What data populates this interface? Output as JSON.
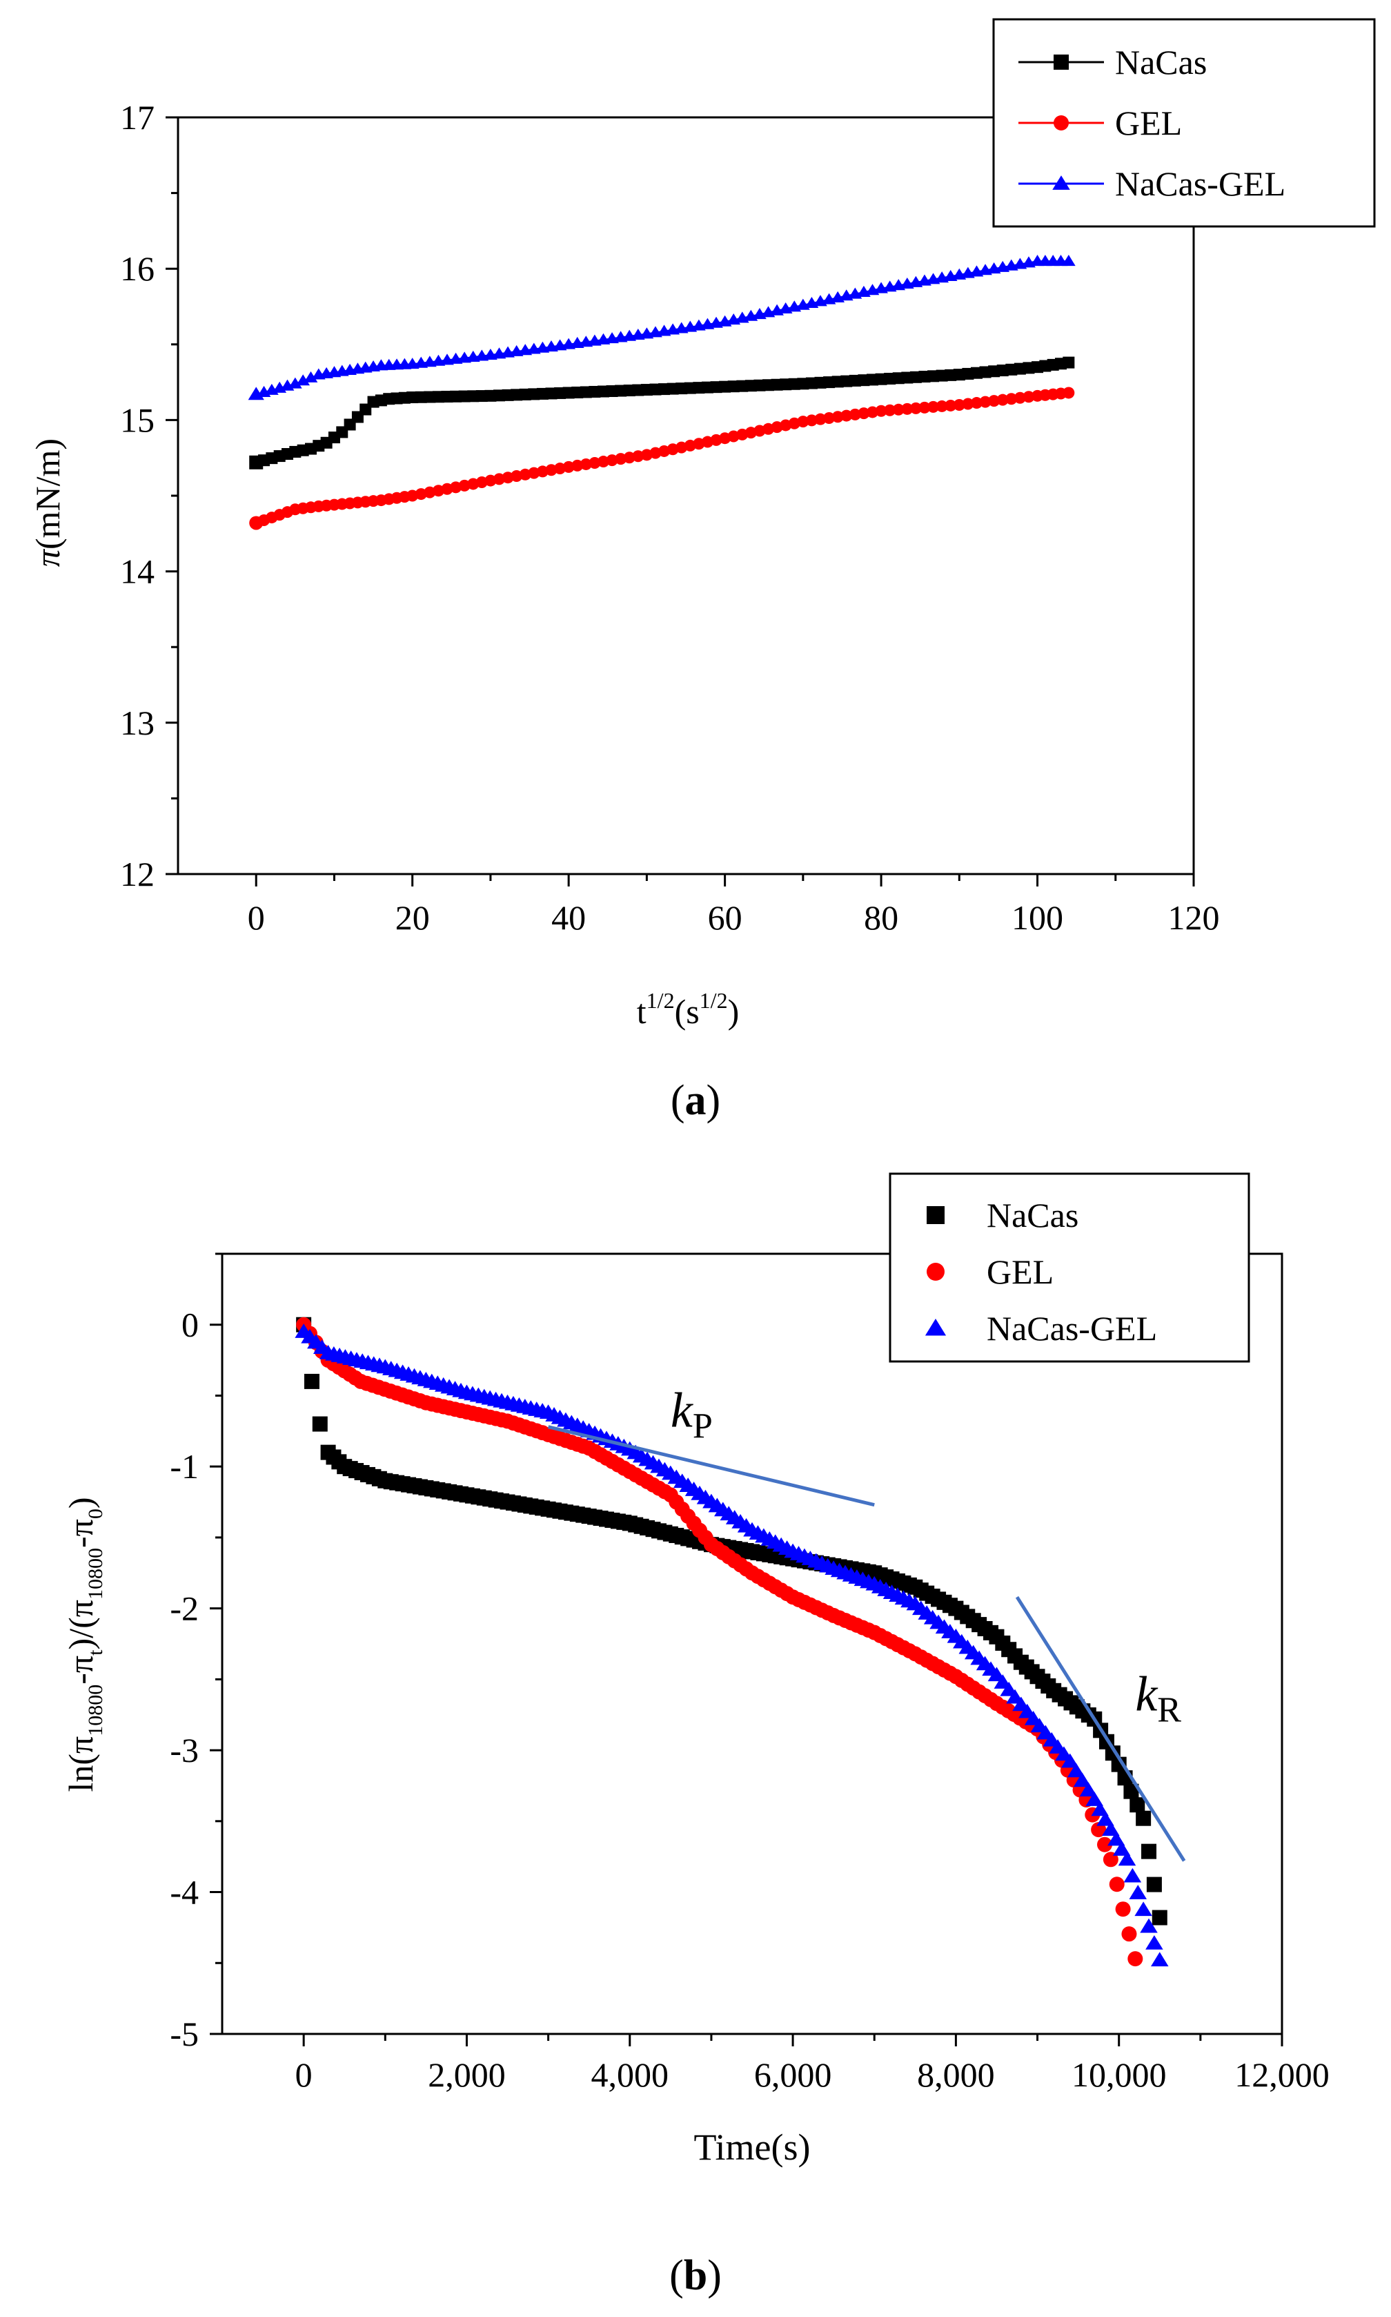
{
  "chart_data": [
    {
      "type": "line",
      "panel": "a",
      "caption": "(a)",
      "caption_letter": "a",
      "title": "",
      "xlabel_base": "t",
      "xlabel_sup": "1/2",
      "xlabel_mid": "(s",
      "xlabel_sup2": "1/2",
      "xlabel_end": ")",
      "ylabel_pi": "π",
      "ylabel_rest": "(mN/m)",
      "xlim": [
        -10,
        120
      ],
      "ylim": [
        12,
        17
      ],
      "xticks": [
        0,
        20,
        40,
        60,
        80,
        100,
        120
      ],
      "yticks": [
        12,
        13,
        14,
        15,
        16,
        17
      ],
      "xtick_labels": [
        "0",
        "20",
        "40",
        "60",
        "80",
        "100",
        "120"
      ],
      "ytick_labels": [
        "12",
        "13",
        "14",
        "15",
        "16",
        "17"
      ],
      "legend": [
        "NaCas",
        "GEL",
        "NaCas-GEL"
      ],
      "legend_position": "top-right",
      "series": [
        {
          "name": "NaCas",
          "color": "#000000",
          "marker": "square",
          "points": [
            [
              0,
              14.72
            ],
            [
              5,
              14.79
            ],
            [
              7,
              14.81
            ],
            [
              9,
              14.85
            ],
            [
              11,
              14.92
            ],
            [
              13,
              15.02
            ],
            [
              15,
              15.12
            ],
            [
              17,
              15.14
            ],
            [
              20,
              15.15
            ],
            [
              30,
              15.16
            ],
            [
              40,
              15.18
            ],
            [
              50,
              15.2
            ],
            [
              60,
              15.22
            ],
            [
              70,
              15.24
            ],
            [
              80,
              15.27
            ],
            [
              90,
              15.3
            ],
            [
              100,
              15.35
            ],
            [
              104,
              15.38
            ]
          ]
        },
        {
          "name": "GEL",
          "color": "#ff0000",
          "marker": "circle",
          "points": [
            [
              0,
              14.32
            ],
            [
              5,
              14.41
            ],
            [
              8,
              14.43
            ],
            [
              12,
              14.45
            ],
            [
              16,
              14.47
            ],
            [
              20,
              14.5
            ],
            [
              30,
              14.6
            ],
            [
              40,
              14.69
            ],
            [
              50,
              14.77
            ],
            [
              60,
              14.88
            ],
            [
              70,
              14.99
            ],
            [
              80,
              15.06
            ],
            [
              90,
              15.1
            ],
            [
              100,
              15.16
            ],
            [
              104,
              15.18
            ]
          ]
        },
        {
          "name": "NaCas-GEL",
          "color": "#0000ff",
          "marker": "triangle",
          "points": [
            [
              0,
              15.17
            ],
            [
              5,
              15.24
            ],
            [
              8,
              15.3
            ],
            [
              12,
              15.33
            ],
            [
              16,
              15.36
            ],
            [
              20,
              15.37
            ],
            [
              30,
              15.43
            ],
            [
              40,
              15.5
            ],
            [
              50,
              15.57
            ],
            [
              60,
              15.65
            ],
            [
              70,
              15.76
            ],
            [
              80,
              15.87
            ],
            [
              90,
              15.96
            ],
            [
              100,
              16.05
            ],
            [
              104,
              16.05
            ]
          ]
        }
      ]
    },
    {
      "type": "scatter",
      "panel": "b",
      "caption": "(b)",
      "caption_letter": "b",
      "title": "",
      "xlabel": "Time(s)",
      "ylabel_a": "ln(π",
      "ylabel_b": "10800",
      "ylabel_c": "-π",
      "ylabel_d": "t",
      "ylabel_e": ")/(π",
      "ylabel_f": "10800",
      "ylabel_g": "-π",
      "ylabel_h": "0",
      "ylabel_i": ")",
      "xlim": [
        -1000,
        12000
      ],
      "ylim": [
        -5,
        0.5
      ],
      "xticks": [
        0,
        2000,
        4000,
        6000,
        8000,
        10000,
        12000
      ],
      "yticks": [
        -5,
        -4,
        -3,
        -2,
        -1,
        0
      ],
      "xtick_labels": [
        "0",
        "2,000",
        "4,000",
        "6,000",
        "8,000",
        "10,000",
        "12,000"
      ],
      "ytick_labels": [
        "-5",
        "-4",
        "-3",
        "-2",
        "-1",
        "0"
      ],
      "legend": [
        "NaCas",
        "GEL",
        "NaCas-GEL"
      ],
      "legend_position": "top-right",
      "annotations": [
        {
          "label": "k",
          "sub": "P",
          "x": 4500,
          "y": -0.72
        },
        {
          "label": "k",
          "sub": "R",
          "x": 10200,
          "y": -2.72
        }
      ],
      "fit_lines": [
        {
          "name": "kP",
          "color": "#4472c4",
          "x1": 3000,
          "y1": -0.72,
          "x2": 7000,
          "y2": -1.27
        },
        {
          "name": "kR",
          "color": "#4472c4",
          "x1": 8750,
          "y1": -1.92,
          "x2": 10800,
          "y2": -3.78
        }
      ],
      "series": [
        {
          "name": "NaCas",
          "color": "#000000",
          "marker": "square",
          "points": [
            [
              0,
              0
            ],
            [
              100,
              -0.4
            ],
            [
              200,
              -0.7
            ],
            [
              300,
              -0.9
            ],
            [
              500,
              -1.0
            ],
            [
              1000,
              -1.1
            ],
            [
              1500,
              -1.15
            ],
            [
              2000,
              -1.2
            ],
            [
              3000,
              -1.3
            ],
            [
              4000,
              -1.4
            ],
            [
              5000,
              -1.55
            ],
            [
              6000,
              -1.65
            ],
            [
              7000,
              -1.75
            ],
            [
              7500,
              -1.85
            ],
            [
              8000,
              -2.0
            ],
            [
              8500,
              -2.2
            ],
            [
              8800,
              -2.38
            ],
            [
              9200,
              -2.58
            ],
            [
              9700,
              -2.78
            ],
            [
              10000,
              -3.1
            ],
            [
              10300,
              -3.48
            ],
            [
              10500,
              -4.18
            ]
          ]
        },
        {
          "name": "GEL",
          "color": "#ff0000",
          "marker": "circle",
          "points": [
            [
              0,
              0
            ],
            [
              300,
              -0.25
            ],
            [
              700,
              -0.4
            ],
            [
              1500,
              -0.55
            ],
            [
              2500,
              -0.68
            ],
            [
              3500,
              -0.87
            ],
            [
              4500,
              -1.2
            ],
            [
              5000,
              -1.55
            ],
            [
              5500,
              -1.75
            ],
            [
              6000,
              -1.92
            ],
            [
              6500,
              -2.05
            ],
            [
              7000,
              -2.17
            ],
            [
              7500,
              -2.32
            ],
            [
              8000,
              -2.48
            ],
            [
              8500,
              -2.67
            ],
            [
              9000,
              -2.85
            ],
            [
              9300,
              -3.07
            ],
            [
              9600,
              -3.35
            ],
            [
              9900,
              -3.77
            ],
            [
              10200,
              -4.47
            ]
          ]
        },
        {
          "name": "NaCas-GEL",
          "color": "#0000ff",
          "marker": "triangle",
          "points": [
            [
              0,
              -0.05
            ],
            [
              300,
              -0.2
            ],
            [
              1000,
              -0.3
            ],
            [
              2000,
              -0.48
            ],
            [
              3000,
              -0.62
            ],
            [
              4000,
              -0.88
            ],
            [
              4500,
              -1.05
            ],
            [
              5000,
              -1.25
            ],
            [
              5500,
              -1.45
            ],
            [
              6000,
              -1.6
            ],
            [
              6500,
              -1.72
            ],
            [
              7000,
              -1.83
            ],
            [
              7500,
              -1.97
            ],
            [
              8000,
              -2.2
            ],
            [
              8500,
              -2.47
            ],
            [
              8800,
              -2.68
            ],
            [
              9100,
              -2.88
            ],
            [
              9400,
              -3.08
            ],
            [
              9700,
              -3.35
            ],
            [
              10100,
              -3.77
            ],
            [
              10500,
              -4.48
            ]
          ]
        }
      ]
    }
  ]
}
